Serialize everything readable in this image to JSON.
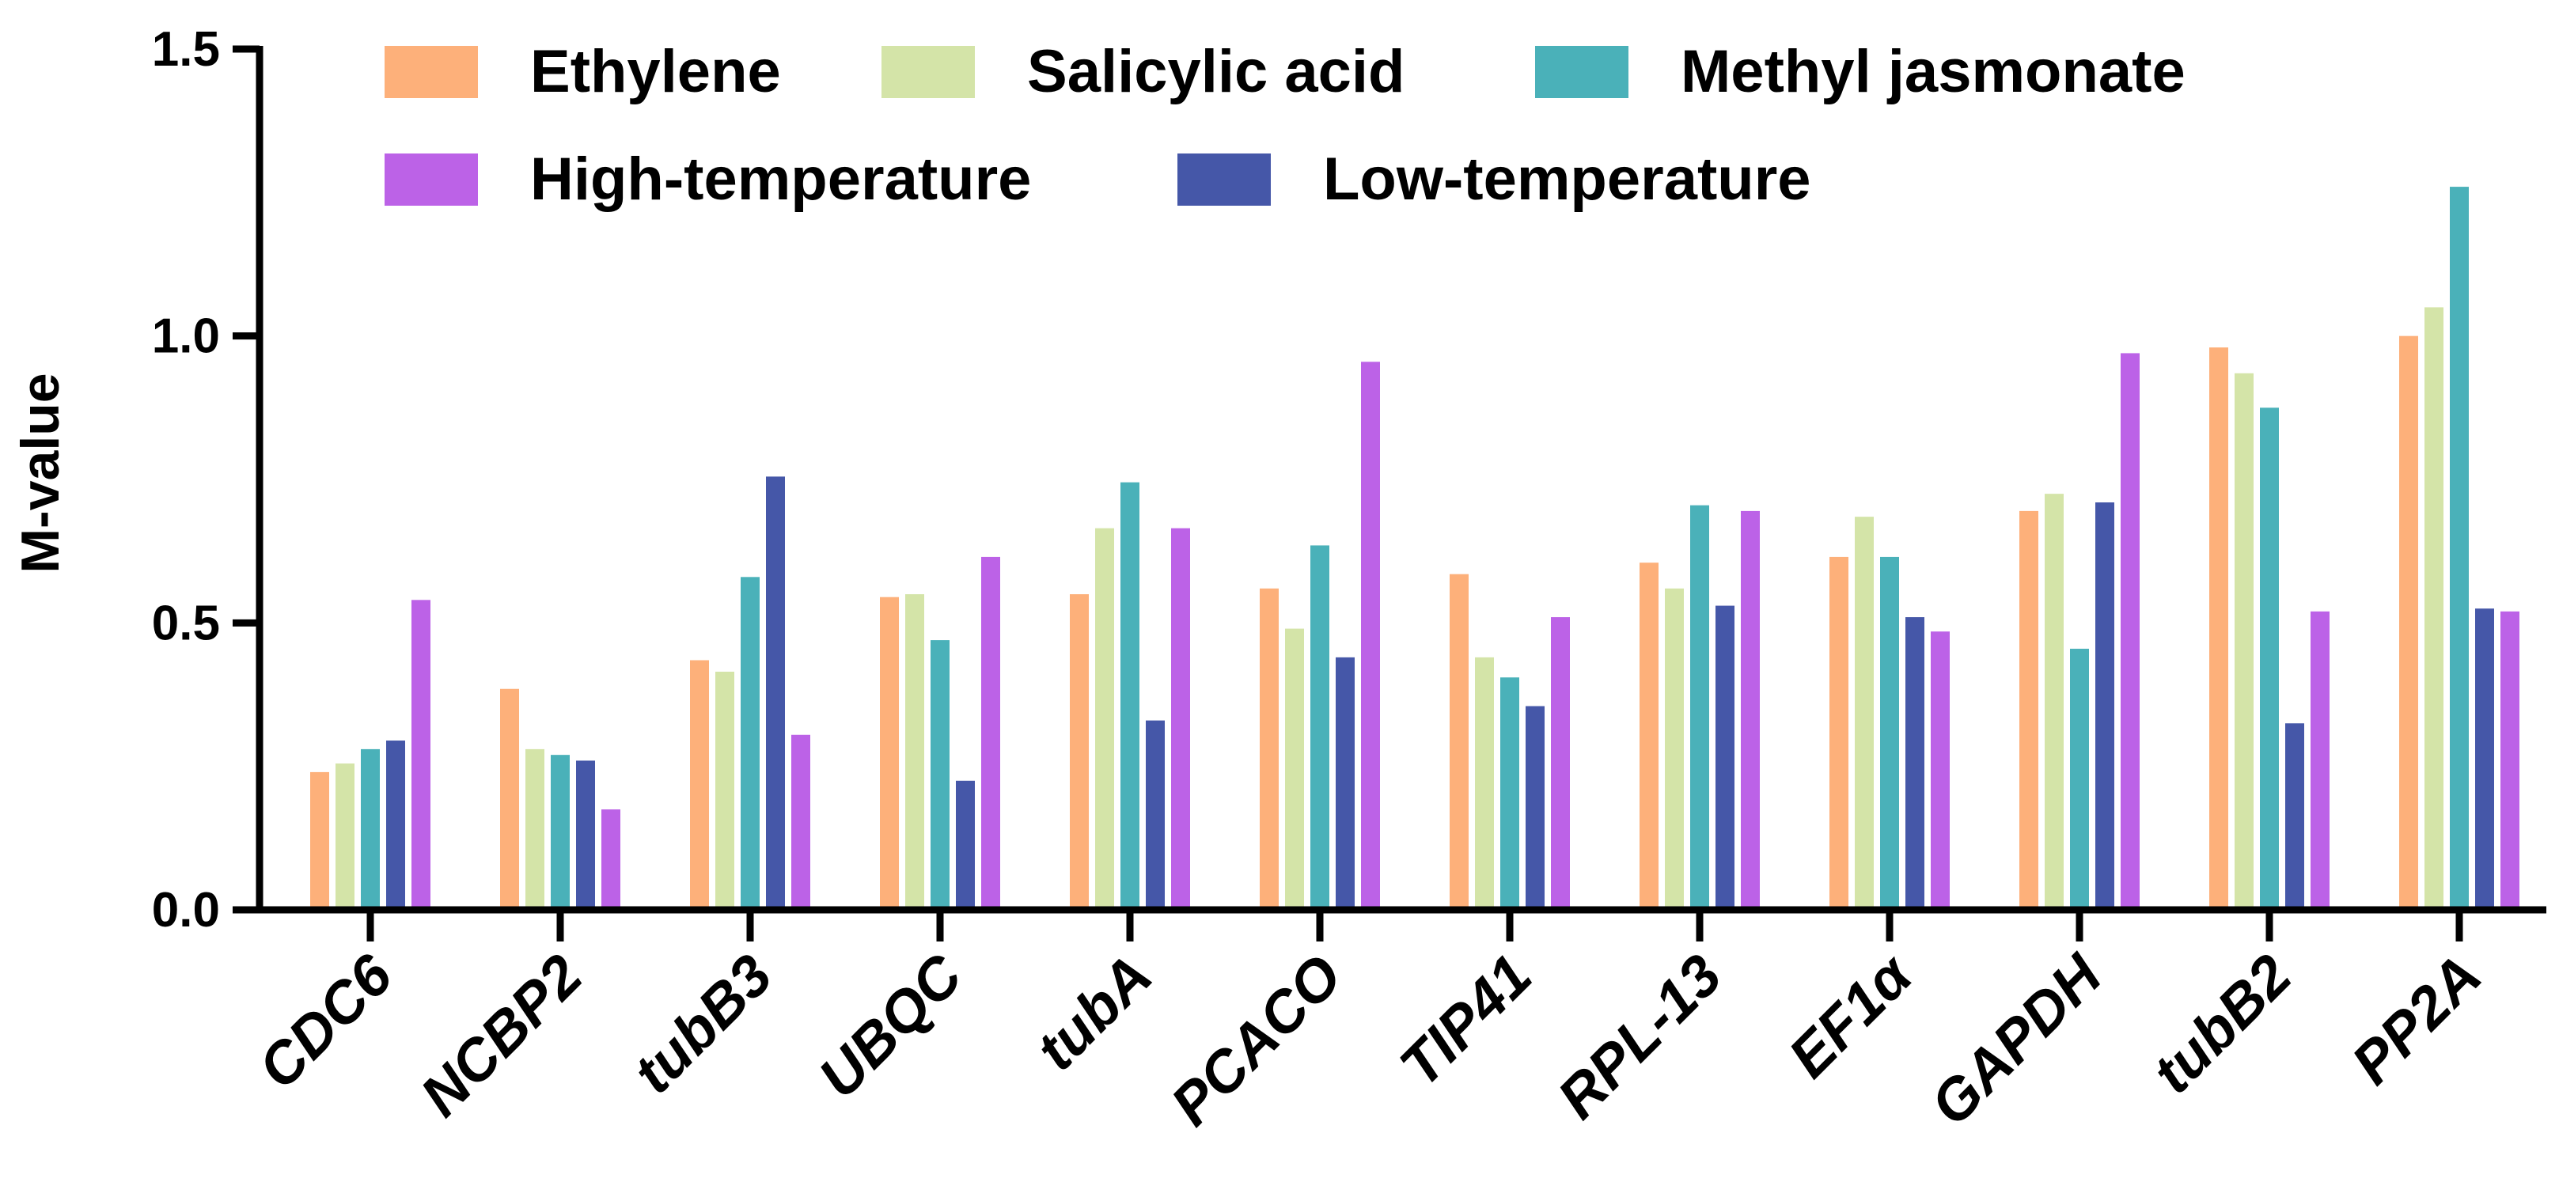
{
  "chart_data": {
    "type": "bar",
    "title": "",
    "xlabel": "",
    "ylabel": "M-value",
    "ylim": [
      0,
      1.5
    ],
    "yticks": [
      "0.0",
      "0.5",
      "1.0",
      "1.5"
    ],
    "ytick_values": [
      0,
      0.5,
      1.0,
      1.5
    ],
    "grid": false,
    "legend_position": "top",
    "categories": [
      "CDC6",
      "NCBP2",
      "tubB3",
      "UBQC",
      "tubA",
      "PCACO",
      "TIP41",
      "RPL-13",
      "EF1α",
      "GAPDH",
      "tubB2",
      "PP2A"
    ],
    "series": [
      {
        "name": "Ethylene",
        "color": "#FDB07A",
        "values": [
          0.24,
          0.385,
          0.435,
          0.545,
          0.55,
          0.56,
          0.585,
          0.605,
          0.615,
          0.695,
          0.98,
          1.0
        ]
      },
      {
        "name": "Salicylic acid",
        "color": "#D4E4A8",
        "values": [
          0.255,
          0.28,
          0.415,
          0.55,
          0.665,
          0.49,
          0.44,
          0.56,
          0.685,
          0.725,
          0.935,
          1.05
        ]
      },
      {
        "name": "Methyl jasmonate",
        "color": "#4AB1B9",
        "values": [
          0.28,
          0.27,
          0.58,
          0.47,
          0.745,
          0.635,
          0.405,
          0.705,
          0.615,
          0.455,
          0.875,
          1.26
        ]
      },
      {
        "name": "Low-temperature",
        "color": "#4557A8",
        "values": [
          0.295,
          0.26,
          0.755,
          0.225,
          0.33,
          0.44,
          0.355,
          0.53,
          0.51,
          0.71,
          0.325,
          0.525
        ]
      },
      {
        "name": "High-temperature",
        "color": "#BC62E7",
        "values": [
          0.54,
          0.175,
          0.305,
          0.615,
          0.665,
          0.955,
          0.51,
          0.695,
          0.485,
          0.97,
          0.52,
          0.52
        ]
      }
    ],
    "legend_order": [
      "Ethylene",
      "Salicylic acid",
      "Methyl jasmonate",
      "High-temperature",
      "Low-temperature"
    ]
  }
}
